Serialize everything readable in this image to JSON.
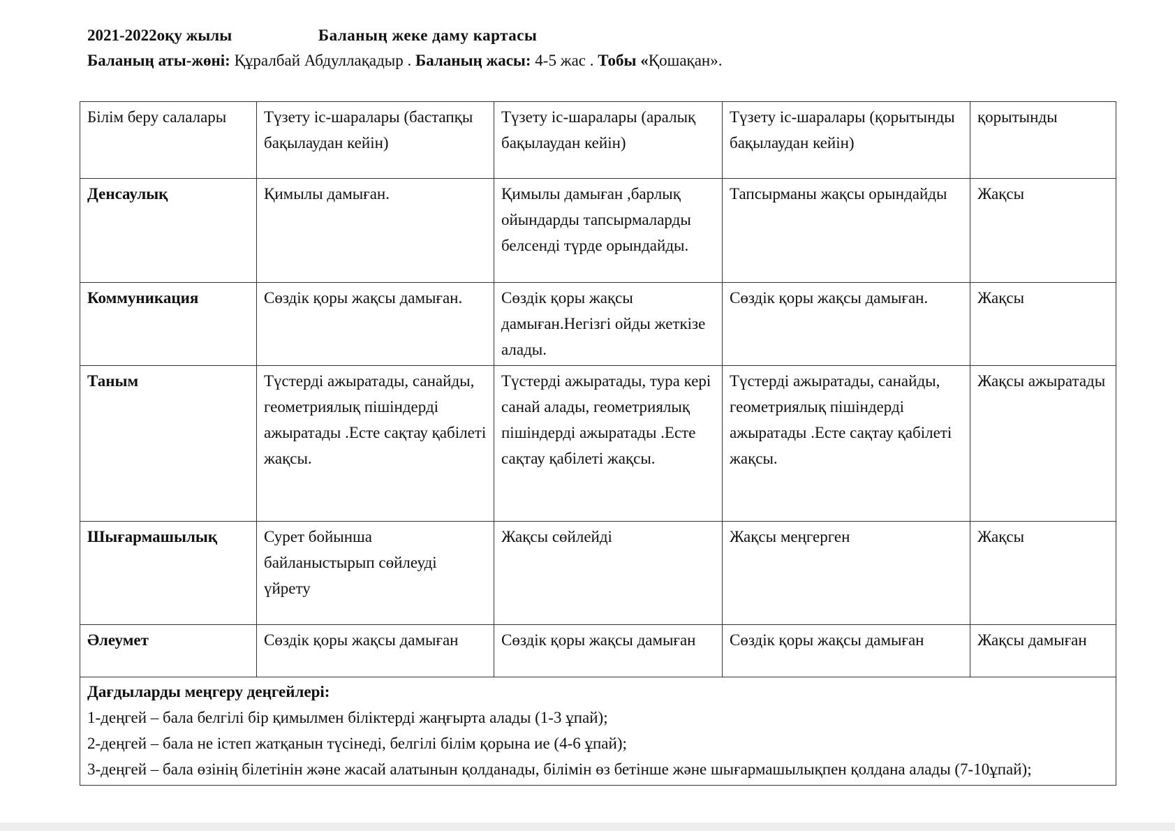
{
  "header": {
    "year": "2021-2022оқу жылы",
    "title": "Баланың  жеке  даму  картасы",
    "name_label": "Баланың аты-жөні:",
    "name_value": " Құралбай Абдуллақадыр . ",
    "age_label": "Баланың жасы:",
    "age_value": " 4-5 жас . ",
    "group_label": "Тобы «",
    "group_value": "Қошақан»."
  },
  "table": {
    "columns": [
      "Білім беру салалары",
      "Түзету іс-шаралары (бастапқы бақылаудан кейін)",
      "Түзету іс-шаралары (аралық бақылаудан кейін)",
      "Түзету іс-шаралары (қорытынды  бақылаудан кейін)",
      "қорытынды"
    ],
    "rows": [
      [
        "Денсаулық",
        "Қимылы дамыған.",
        "Қимылы дамыған ,барлық ойындарды тапсырмаларды белсенді түрде орындайды.",
        "Тапсырманы жақсы орындайды",
        "Жақсы"
      ],
      [
        "Коммуникация",
        " Сөздік қоры жақсы дамыған.",
        "Сөздік қоры жақсы дамыған.Негізгі ойды жеткізе алады.",
        " Сөздік қоры жақсы дамыған.",
        "Жақсы"
      ],
      [
        "Таным",
        "Түстерді ажыратады, санайды, геометриялық пішіндерді ажыратады .Есте сақтау қабілеті жақсы.",
        "Түстерді ажыратады, тура кері санай алады, геометриялық пішіндерді ажыратады .Есте сақтау қабілеті жақсы.",
        "Түстерді ажыратады, санайды, геометриялық пішіндерді ажыратады .Есте сақтау қабілеті жақсы.",
        "Жақсы ажыратады"
      ],
      [
        "Шығармашылық",
        "Сурет бойынша байланыстырып сөйлеуді үйрету",
        "Жақсы сөйлейді",
        "Жақсы меңгерген",
        "Жақсы"
      ],
      [
        "Әлеумет",
        "Сөздік қоры жақсы дамыған",
        "Сөздік қоры жақсы дамыған",
        "Сөздік қоры жақсы дамыған",
        "Жақсы дамыған"
      ]
    ],
    "footer": {
      "title": "Дағдыларды меңгеру деңгейлері:",
      "levels": [
        "1-деңгей – бала белгілі бір қимылмен біліктерді жаңғырта алады (1-3 ұпай);",
        "2-деңгей – бала не істеп жатқанын түсінеді, белгілі білім қорына ие (4-6 ұпай);",
        "3-деңгей – бала өзінің білетінін және жасай алатынын қолданады, білімін өз бетінше және шығармашылықпен қолдана алады (7-10ұпай);"
      ]
    }
  }
}
